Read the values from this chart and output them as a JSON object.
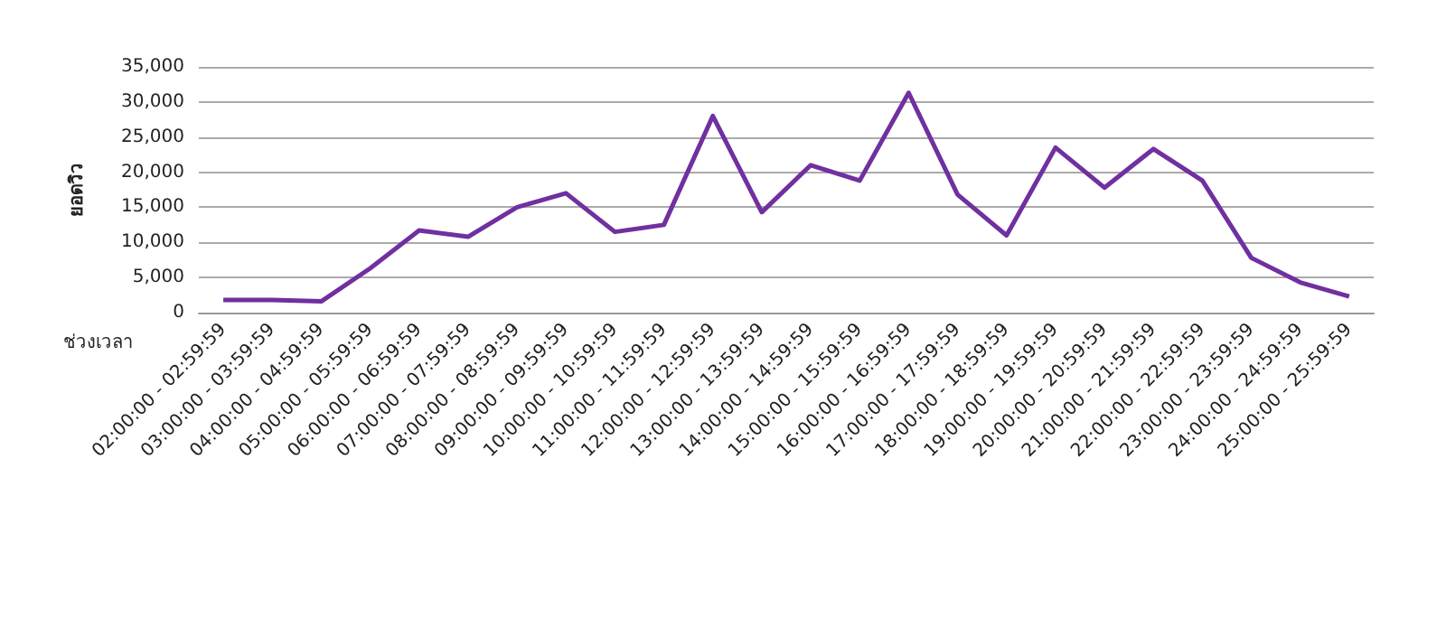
{
  "chart_data": {
    "type": "line",
    "ylabel": "ยอดวิว",
    "xlabel": "ช่วงเวลา",
    "categories": [
      "02:00:00 - 02:59:59",
      "03:00:00 - 03:59:59",
      "04:00:00 - 04:59:59",
      "05:00:00 - 05:59:59",
      "06:00:00 - 06:59:59",
      "07:00:00 - 07:59:59",
      "08:00:00 - 08:59:59",
      "09:00:00 - 09:59:59",
      "10:00:00 - 10:59:59",
      "11:00:00 - 11:59:59",
      "12:00:00 - 12:59:59",
      "13:00:00 - 13:59:59",
      "14:00:00 - 14:59:59",
      "15:00:00 - 15:59:59",
      "16:00:00 - 16:59:59",
      "17:00:00 - 17:59:59",
      "18:00:00 - 18:59:59",
      "19:00:00 - 19:59:59",
      "20:00:00 - 20:59:59",
      "21:00:00 - 21:59:59",
      "22:00:00 - 22:59:59",
      "23:00:00 - 23:59:59",
      "24:00:00 - 24:59:59",
      "25:00:00 - 25:59:59"
    ],
    "series": [
      {
        "color": "#7030a0",
        "values": [
          1800,
          1800,
          1600,
          6300,
          11700,
          10800,
          15000,
          17000,
          11500,
          12500,
          28000,
          14300,
          21000,
          18800,
          31300,
          16800,
          11000,
          23500,
          17800,
          23300,
          18800,
          7800,
          4300,
          2300
        ]
      }
    ],
    "ylim": [
      0,
      35000
    ],
    "yticks": [
      0,
      {
        "value": 5000,
        "label": "5,000"
      },
      {
        "value": 10000,
        "label": "10,000"
      },
      {
        "value": 15000,
        "label": "15,000"
      },
      {
        "value": 20000,
        "label": "20,000"
      },
      {
        "value": 25000,
        "label": "25,000"
      },
      {
        "value": 30000,
        "label": "30,000"
      },
      {
        "value": 35000,
        "label": "35,000"
      }
    ],
    "grid": "y",
    "marker": "none",
    "line_style": "solid"
  }
}
